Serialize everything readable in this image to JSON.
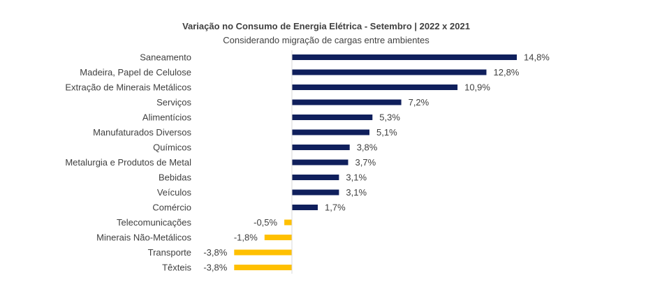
{
  "chart_data": {
    "type": "bar",
    "orientation": "horizontal",
    "title": "Variação no Consumo de Energia Elétrica - Setembro | 2022 x 2021",
    "subtitle": "Considerando migração de cargas entre ambientes",
    "categories": [
      "Saneamento",
      "Madeira, Papel de Celulose",
      "Extração de Minerais Metálicos",
      "Serviços",
      "Alimentícios",
      "Manufaturados Diversos",
      "Químicos",
      "Metalurgia e Produtos de Metal",
      "Bebidas",
      "Veículos",
      "Comércio",
      "Telecomunicações",
      "Minerais Não-Metálicos",
      "Transporte",
      "Têxteis"
    ],
    "values": [
      14.8,
      12.8,
      10.9,
      7.2,
      5.3,
      5.1,
      3.8,
      3.7,
      3.1,
      3.1,
      1.7,
      -0.5,
      -1.8,
      -3.8,
      -3.8
    ],
    "labels": [
      "14,8%",
      "12,8%",
      "10,9%",
      "7,2%",
      "5,3%",
      "5,1%",
      "3,8%",
      "3,7%",
      "3,1%",
      "3,1%",
      "1,7%",
      "-0,5%",
      "-1,8%",
      "-3,8%",
      "-3,8%"
    ],
    "colors": {
      "positive": "#0f1f5c",
      "negative": "#ffc000",
      "axis": "#d9d9d9"
    },
    "grid": false,
    "legend": "none"
  }
}
